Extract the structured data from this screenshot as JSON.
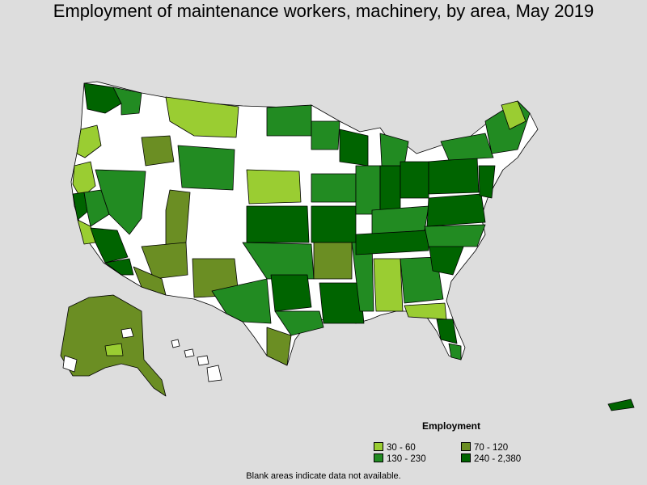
{
  "title": "Employment of maintenance workers, machinery, by area, May 2019",
  "legend": {
    "title": "Employment",
    "items": [
      {
        "label": "30 - 60",
        "color": "#9acd32"
      },
      {
        "label": "70 - 120",
        "color": "#6b8e23"
      },
      {
        "label": "130 - 230",
        "color": "#228b22"
      },
      {
        "label": "240 - 2,380",
        "color": "#006400"
      }
    ]
  },
  "footnote": "Blank areas indicate data not available.",
  "colors": {
    "background": "#dddddd",
    "no_data": "#ffffff",
    "border": "#000000"
  }
}
